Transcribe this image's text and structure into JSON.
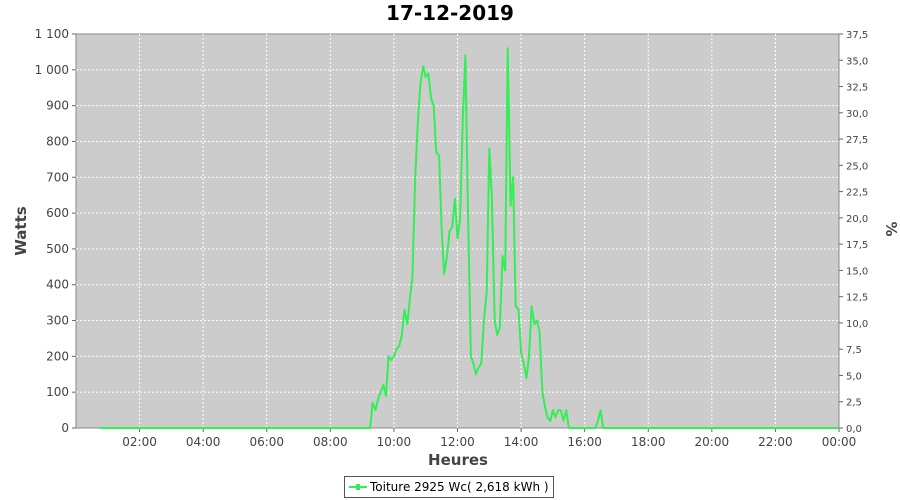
{
  "chart_data": {
    "type": "line",
    "title": "17-12-2019",
    "xlabel": "Heures",
    "ylabel": "Watts",
    "y2label": "%",
    "xlim": [
      0,
      24
    ],
    "ylim": [
      0,
      1100
    ],
    "y2lim": [
      0,
      37.5
    ],
    "x_ticks": [
      "02:00",
      "04:00",
      "06:00",
      "08:00",
      "10:00",
      "12:00",
      "14:00",
      "16:00",
      "18:00",
      "20:00",
      "22:00",
      "00:00"
    ],
    "y_ticks": [
      "0",
      "100",
      "200",
      "300",
      "400",
      "500",
      "600",
      "700",
      "800",
      "900",
      "1 000",
      "1 100"
    ],
    "y2_ticks": [
      "0,0",
      "2,5",
      "5,0",
      "7,5",
      "10,0",
      "12,5",
      "15,0",
      "17,5",
      "20,0",
      "22,5",
      "25,0",
      "27,5",
      "30,0",
      "32,5",
      "35,0",
      "37,5"
    ],
    "grid": true,
    "legend_position": "bottom",
    "colors": {
      "series": "#33ee55",
      "plot_bg": "#cccccc",
      "grid": "#ffffff"
    },
    "series": [
      {
        "name": "Toiture 2925 Wc( 2,618 kWh )",
        "x": [
          0.75,
          9.25,
          9.33,
          9.42,
          9.5,
          9.58,
          9.67,
          9.75,
          9.83,
          9.92,
          10.0,
          10.08,
          10.17,
          10.25,
          10.33,
          10.42,
          10.5,
          10.58,
          10.67,
          10.75,
          10.83,
          10.92,
          11.0,
          11.08,
          11.17,
          11.25,
          11.33,
          11.42,
          11.5,
          11.58,
          11.67,
          11.75,
          11.83,
          11.92,
          12.0,
          12.08,
          12.17,
          12.25,
          12.33,
          12.42,
          12.5,
          12.58,
          12.67,
          12.75,
          12.83,
          12.92,
          13.0,
          13.08,
          13.17,
          13.25,
          13.33,
          13.42,
          13.5,
          13.58,
          13.67,
          13.75,
          13.83,
          13.92,
          14.0,
          14.08,
          14.17,
          14.25,
          14.33,
          14.42,
          14.5,
          14.58,
          14.67,
          14.75,
          14.83,
          14.92,
          15.0,
          15.08,
          15.17,
          15.25,
          15.33,
          15.42,
          15.5,
          15.58,
          15.67,
          15.75,
          15.83,
          15.92,
          16.0,
          16.08,
          16.17,
          16.25,
          16.33,
          16.42,
          16.5,
          16.58,
          24.0
        ],
        "y": [
          0,
          0,
          70,
          50,
          80,
          100,
          120,
          90,
          200,
          190,
          200,
          220,
          230,
          260,
          330,
          290,
          360,
          420,
          700,
          850,
          960,
          1010,
          980,
          990,
          920,
          900,
          770,
          760,
          560,
          430,
          480,
          550,
          560,
          640,
          530,
          580,
          870,
          1040,
          600,
          200,
          180,
          150,
          170,
          180,
          300,
          380,
          780,
          650,
          300,
          260,
          280,
          480,
          440,
          1060,
          620,
          700,
          340,
          330,
          210,
          180,
          140,
          200,
          340,
          290,
          300,
          270,
          100,
          60,
          30,
          20,
          50,
          30,
          50,
          50,
          20,
          50,
          0,
          0,
          0,
          0,
          0,
          0,
          0,
          0,
          0,
          0,
          0,
          20,
          50,
          0,
          0
        ]
      }
    ]
  }
}
